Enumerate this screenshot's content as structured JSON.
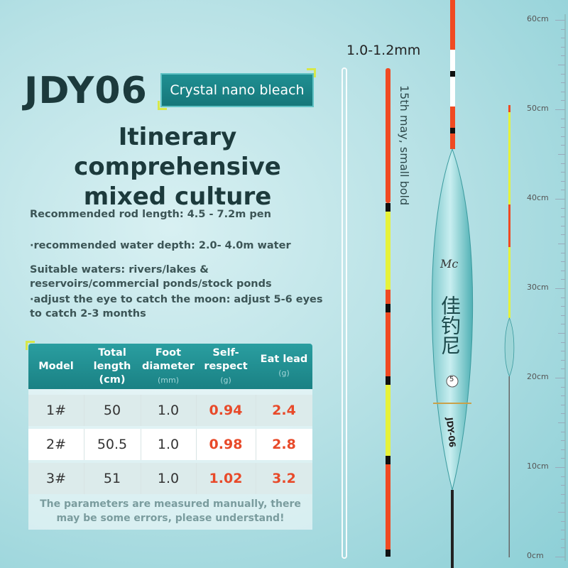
{
  "header": {
    "model_code": "JDY06",
    "badge": "Crystal nano bleach",
    "headline_line1": "Itinerary comprehensive",
    "headline_line2": "mixed culture"
  },
  "specs": [
    "Recommended rod length: 4.5 - 7.2m pen",
    "·recommended water depth: 2.0- 4.0m water",
    "Suitable waters: rivers/lakes & reservoirs/commercial ponds/stock ponds",
    "·adjust the eye to catch the moon: adjust 5-6 eyes to catch 2-3 months"
  ],
  "table": {
    "headers": {
      "model": "Model",
      "total_length": "Total length (cm)",
      "foot_diameter": "Foot diameter",
      "foot_diameter_unit": "(mm)",
      "self_respect": "Self-respect",
      "self_respect_unit": "(g)",
      "eat_lead": "Eat lead",
      "eat_lead_unit": "(g)"
    },
    "rows": [
      {
        "model": "1#",
        "length": "50",
        "diameter": "1.0",
        "self": "0.94",
        "lead": "2.4"
      },
      {
        "model": "2#",
        "length": "50.5",
        "diameter": "1.0",
        "self": "0.98",
        "lead": "2.8"
      },
      {
        "model": "3#",
        "length": "51",
        "diameter": "1.0",
        "self": "1.02",
        "lead": "3.2"
      }
    ],
    "note": "The parameters are measured manually, there may be some errors, please understand!"
  },
  "product": {
    "range_label": "1.0-1.2mm",
    "vertical_text": "15th may, small bold",
    "brand_mark": "Mc",
    "chinese_brand": "佳钓尼",
    "body_code": "JDY-06",
    "size_mark": "5"
  },
  "ruler": {
    "labels": [
      "60cm",
      "50cm",
      "40cm",
      "30cm",
      "20cm",
      "10cm",
      "0cm"
    ]
  },
  "colors": {
    "accent_teal": "#1a8184",
    "value_red": "#e84a2a",
    "tip_orange": "#f04a22",
    "tip_yellow": "#e6f23a"
  }
}
